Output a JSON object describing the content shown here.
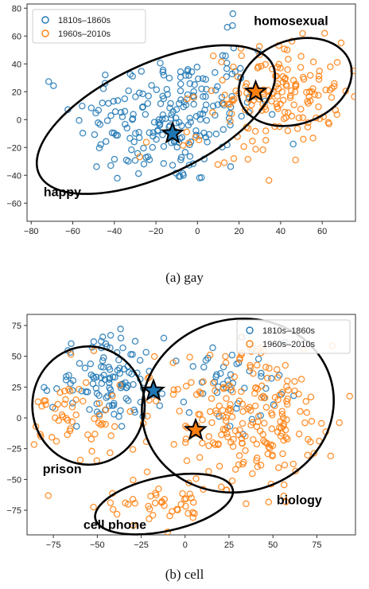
{
  "chart_data": [
    {
      "type": "scatter",
      "caption": "(a) gay",
      "xlim": [
        -82,
        76
      ],
      "ylim": [
        -73,
        83
      ],
      "xticks": [
        -80,
        -60,
        -40,
        -20,
        0,
        20,
        40,
        60
      ],
      "yticks": [
        -60,
        -40,
        -20,
        0,
        20,
        40,
        60,
        80
      ],
      "legend_placement": "top-left",
      "series": [
        {
          "name": "1810s–1860s",
          "color": "#1f77b4",
          "clusters": [
            {
              "cx": -15,
              "cy": 0,
              "sx": 22,
              "sy": 24,
              "n": 200
            },
            {
              "cx": 12,
              "cy": 25,
              "sx": 12,
              "sy": 28,
              "n": 30
            }
          ]
        },
        {
          "name": "1960s–2010s",
          "color": "#ff7f0e",
          "clusters": [
            {
              "cx": 42,
              "cy": 20,
              "sx": 14,
              "sy": 18,
              "n": 140
            },
            {
              "cx": 10,
              "cy": -10,
              "sx": 20,
              "sy": 22,
              "n": 30
            }
          ]
        }
      ],
      "stars": [
        {
          "x": -12,
          "y": -10,
          "color": "#1f77b4"
        },
        {
          "x": 28,
          "y": 20,
          "color": "#ff7f0e"
        }
      ],
      "ellipses": [
        {
          "cx": -20,
          "cy": 0,
          "rx": 62,
          "ry": 40,
          "angle": -25
        },
        {
          "cx": 47,
          "cy": 27,
          "rx": 28,
          "ry": 30,
          "angle": -20
        }
      ],
      "annotations": [
        {
          "text": "homosexual",
          "x": 45,
          "y": 68
        },
        {
          "text": "happy",
          "x": -65,
          "y": -55
        }
      ]
    },
    {
      "type": "scatter",
      "caption": "(b) cell",
      "xlim": [
        -90,
        97
      ],
      "ylim": [
        -95,
        84
      ],
      "xticks": [
        -75,
        -50,
        -25,
        0,
        25,
        50,
        75
      ],
      "yticks": [
        -75,
        -50,
        -25,
        0,
        25,
        50,
        75
      ],
      "legend_placement": "top-right",
      "series": [
        {
          "name": "1810s–1860s",
          "color": "#1f77b4",
          "clusters": [
            {
              "cx": -45,
              "cy": 30,
              "sx": 15,
              "sy": 18,
              "n": 110
            },
            {
              "cx": 25,
              "cy": 30,
              "sx": 20,
              "sy": 18,
              "n": 50
            }
          ]
        },
        {
          "name": "1960s–2010s",
          "color": "#ff7f0e",
          "clusters": [
            {
              "cx": 35,
              "cy": 0,
              "sx": 25,
              "sy": 28,
              "n": 230
            },
            {
              "cx": -60,
              "cy": 0,
              "sx": 15,
              "sy": 22,
              "n": 60
            },
            {
              "cx": -12,
              "cy": -70,
              "sx": 15,
              "sy": 10,
              "n": 45
            }
          ]
        }
      ],
      "stars": [
        {
          "x": -18,
          "y": 22,
          "color": "#1f77b4"
        },
        {
          "x": 6,
          "y": -10,
          "color": "#ff7f0e"
        }
      ],
      "ellipses": [
        {
          "cx": -55,
          "cy": 10,
          "rx": 32,
          "ry": 48,
          "angle": 0
        },
        {
          "cx": 30,
          "cy": 10,
          "rx": 55,
          "ry": 70,
          "angle": -15
        },
        {
          "cx": -12,
          "cy": -70,
          "rx": 40,
          "ry": 22,
          "angle": -12
        }
      ],
      "annotations": [
        {
          "text": "prison",
          "x": -70,
          "y": -45
        },
        {
          "text": "biology",
          "x": 65,
          "y": -70
        },
        {
          "text": "cell phone",
          "x": -40,
          "y": -90
        }
      ]
    }
  ]
}
